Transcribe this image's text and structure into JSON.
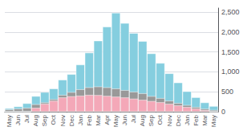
{
  "chart_data": {
    "type": "bar",
    "categories": [
      "May",
      "Jun",
      "Jul",
      "Aug",
      "Sep",
      "Oct",
      "Nov",
      "Dec",
      "Jan",
      "Feb",
      "Mar",
      "Apr",
      "May",
      "Jun",
      "Jul",
      "Aug",
      "Sep",
      "Oct",
      "Nov",
      "Dec",
      "Jan",
      "Feb",
      "Mar",
      "May"
    ],
    "series": [
      {
        "color": "#85CEDF",
        "values": [
          85,
          130,
          210,
          390,
          490,
          580,
          800,
          940,
          1180,
          1480,
          1780,
          2130,
          2480,
          2220,
          1970,
          1770,
          1460,
          1220,
          960,
          730,
          510,
          360,
          230,
          140
        ]
      },
      {
        "color": "#999999",
        "values": [
          55,
          75,
          95,
          185,
          230,
          310,
          420,
          490,
          560,
          610,
          630,
          610,
          580,
          540,
          500,
          460,
          390,
          340,
          275,
          215,
          165,
          115,
          72,
          42
        ]
      },
      {
        "color": "#F4A8B8",
        "values": [
          0,
          0,
          0,
          95,
          195,
          270,
          355,
          385,
          400,
          420,
          415,
          395,
          375,
          355,
          325,
          295,
          265,
          235,
          195,
          155,
          115,
          75,
          38,
          0
        ]
      }
    ],
    "stacked": false,
    "ylim": [
      0,
      2600
    ],
    "yticks": [
      0,
      500,
      {
        "value": 1000,
        "label": "1,000"
      },
      {
        "value": 1500,
        "label": "1,500"
      },
      {
        "value": 2000,
        "label": "2,000"
      },
      {
        "value": 2500,
        "label": "2,500"
      }
    ],
    "grid": true
  }
}
